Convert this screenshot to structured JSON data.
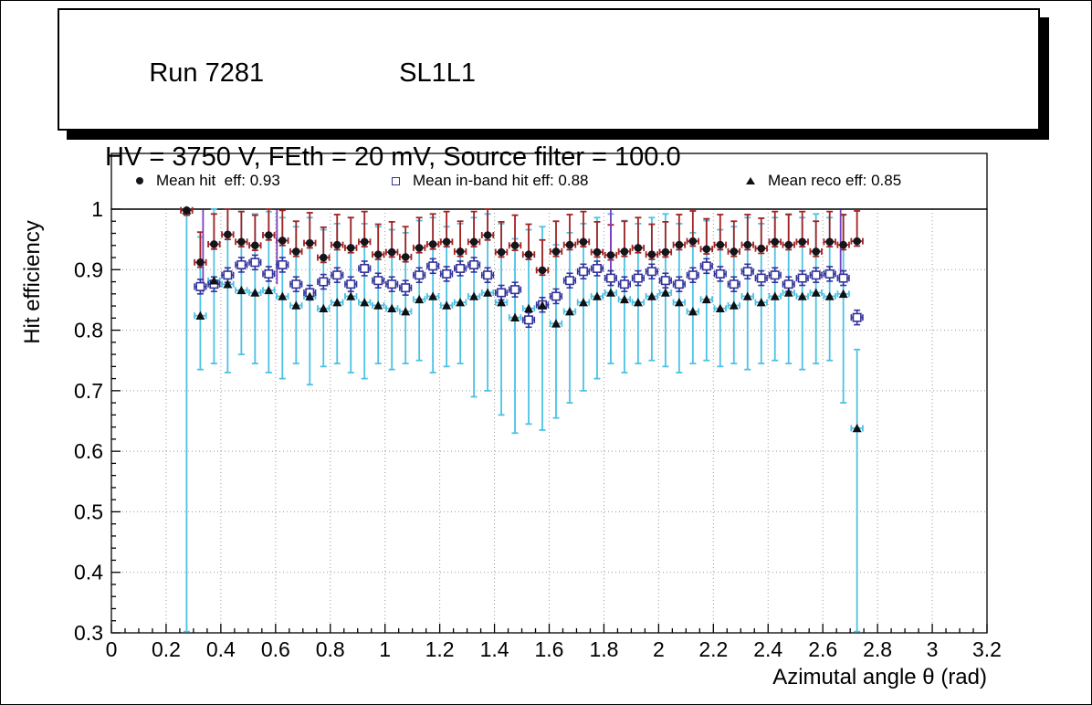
{
  "header": {
    "run": "Run 7281",
    "layer": "SL1L1",
    "conditions": "HV = 3750 V, FEth = 20 mV, Source filter = 100.0"
  },
  "legend": {
    "items": [
      {
        "marker": "filled-circle",
        "label": "Mean hit  eff: 0.93"
      },
      {
        "marker": "open-square",
        "label": "Mean in-band hit eff: 0.88"
      },
      {
        "marker": "filled-triangle",
        "label": "Mean reco eff: 0.85"
      }
    ]
  },
  "colors": {
    "hit_marker": "#15151c",
    "hit_err": "#a32222",
    "inband": "#32329b",
    "reco_marker": "#101014",
    "reco_err": "#4cc2e4",
    "violet": "#7a3fbf",
    "grid": "#9a9a9a"
  },
  "chart_data": {
    "type": "scatter",
    "title": "",
    "xlabel": "Azimutal angle θ (rad)",
    "ylabel": "Hit efficiency",
    "xlim": [
      0,
      3.2
    ],
    "ylim": [
      0.3,
      1.0
    ],
    "grid": true,
    "legend_position": "top",
    "xtick_vals": [
      0,
      0.2,
      0.4,
      0.6,
      0.8,
      1,
      1.2,
      1.4,
      1.6,
      1.8,
      2,
      2.2,
      2.4,
      2.6,
      2.8,
      3,
      3.2
    ],
    "xtick_labels": [
      "0",
      "0.2",
      "0.4",
      "0.6",
      "0.8",
      "1",
      "1.2",
      "1.4",
      "1.6",
      "1.8",
      "2",
      "2.2",
      "2.4",
      "2.6",
      "2.8",
      "3",
      "3.2"
    ],
    "ytick_vals": [
      0.3,
      0.4,
      0.5,
      0.6,
      0.7,
      0.8,
      0.9,
      1.0
    ],
    "ytick_labels": [
      "0.3",
      "0.4",
      "0.5",
      "0.6",
      "0.7",
      "0.8",
      "0.9",
      "1"
    ],
    "xerr": 0.021,
    "x": [
      0.275,
      0.325,
      0.375,
      0.425,
      0.475,
      0.525,
      0.575,
      0.625,
      0.675,
      0.725,
      0.775,
      0.825,
      0.875,
      0.925,
      0.975,
      1.025,
      1.075,
      1.125,
      1.175,
      1.225,
      1.275,
      1.325,
      1.375,
      1.425,
      1.475,
      1.525,
      1.575,
      1.625,
      1.675,
      1.725,
      1.775,
      1.825,
      1.875,
      1.925,
      1.975,
      2.025,
      2.075,
      2.125,
      2.175,
      2.225,
      2.275,
      2.325,
      2.375,
      2.425,
      2.475,
      2.525,
      2.575,
      2.625,
      2.675,
      2.725
    ],
    "series": [
      {
        "name": "Mean hit  eff: 0.93",
        "mean": 0.93,
        "marker": "circle",
        "marker_color": "#15151c",
        "err_color": "#a32222",
        "err_width": 1.8,
        "err_down": 0.008,
        "err_up": 0.05,
        "y": [
          0.998,
          0.912,
          0.942,
          0.958,
          0.946,
          0.94,
          0.957,
          0.948,
          0.93,
          0.944,
          0.92,
          0.941,
          0.936,
          0.946,
          0.925,
          0.929,
          0.921,
          0.936,
          0.942,
          0.946,
          0.93,
          0.946,
          0.957,
          0.929,
          0.94,
          0.925,
          0.899,
          0.93,
          0.941,
          0.946,
          0.929,
          0.924,
          0.93,
          0.936,
          0.925,
          0.929,
          0.941,
          0.947,
          0.934,
          0.941,
          0.93,
          0.941,
          0.935,
          0.946,
          0.941,
          0.946,
          0.93,
          0.946,
          0.941,
          0.947
        ]
      },
      {
        "name": "Mean in-band hit eff: 0.88",
        "mean": 0.88,
        "marker": "open-square",
        "marker_color": "#32329b",
        "err_color": "#32329b",
        "err_width": 1.6,
        "err_down": 0.012,
        "err_up": 0.012,
        "y": [
          null,
          0.872,
          0.876,
          0.891,
          0.908,
          0.912,
          0.893,
          0.908,
          0.876,
          0.862,
          0.88,
          0.891,
          0.876,
          0.902,
          0.882,
          0.876,
          0.87,
          0.891,
          0.906,
          0.893,
          0.902,
          0.908,
          0.891,
          0.862,
          0.867,
          0.817,
          0.842,
          0.856,
          0.882,
          0.897,
          0.902,
          0.886,
          0.876,
          0.886,
          0.897,
          0.882,
          0.876,
          0.891,
          0.906,
          0.893,
          0.876,
          0.897,
          0.886,
          0.891,
          0.876,
          0.886,
          0.891,
          0.893,
          0.886,
          0.821
        ]
      },
      {
        "name": "Mean reco eff: 0.85",
        "mean": 0.85,
        "marker": "triangle",
        "marker_color": "#101014",
        "err_color": "#4cc2e4",
        "err_width": 1.8,
        "err_down": 0.1,
        "err_up": 0.13,
        "y": [
          0.998,
          0.824,
          0.882,
          0.876,
          0.866,
          0.862,
          0.866,
          0.856,
          0.841,
          0.856,
          0.836,
          0.846,
          0.856,
          0.846,
          0.841,
          0.836,
          0.831,
          0.851,
          0.856,
          0.841,
          0.846,
          0.856,
          0.862,
          0.846,
          0.821,
          0.836,
          0.841,
          0.811,
          0.831,
          0.846,
          0.856,
          0.862,
          0.851,
          0.846,
          0.856,
          0.862,
          0.846,
          0.831,
          0.851,
          0.836,
          0.841,
          0.856,
          0.846,
          0.856,
          0.862,
          0.856,
          0.862,
          0.856,
          0.86,
          0.638
        ],
        "ylo": [
          0.302,
          0.735,
          0.745,
          0.73,
          0.76,
          0.745,
          0.73,
          0.72,
          0.745,
          0.71,
          0.74,
          0.745,
          0.73,
          0.72,
          0.745,
          0.735,
          0.745,
          0.75,
          0.73,
          0.74,
          0.745,
          0.69,
          0.7,
          0.66,
          0.63,
          0.645,
          0.635,
          0.655,
          0.68,
          0.7,
          0.72,
          0.745,
          0.73,
          0.745,
          0.75,
          0.74,
          0.73,
          0.745,
          0.75,
          0.74,
          0.745,
          0.735,
          0.745,
          0.75,
          0.745,
          0.735,
          0.745,
          0.75,
          0.68,
          0.302
        ]
      }
    ],
    "extra_bars": [
      {
        "x": 0.335,
        "y1": 0.862,
        "y2": 0.999
      },
      {
        "x": 0.605,
        "y1": 0.876,
        "y2": 0.999
      },
      {
        "x": 1.825,
        "y1": 0.872,
        "y2": 0.999
      },
      {
        "x": 2.665,
        "y1": 0.882,
        "y2": 0.999
      }
    ],
    "extra_bar_color": "#7a3fbf"
  }
}
